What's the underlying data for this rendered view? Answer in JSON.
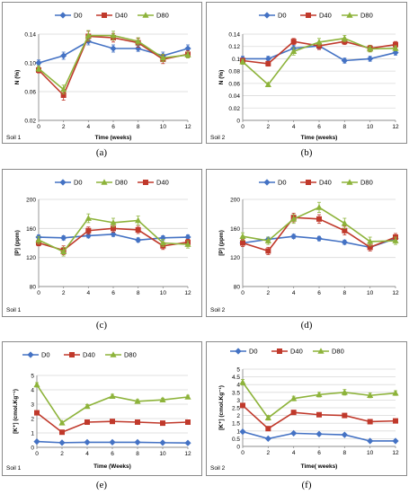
{
  "colors": {
    "D0": "#4472C4",
    "D40": "#C0392B",
    "D80": "#8DB33A",
    "grid": "#d9d9d9",
    "axis": "#8c8c8c"
  },
  "panels": {
    "a": {
      "caption": "(a)",
      "soil": "Soil 1"
    },
    "b": {
      "caption": "(b)",
      "soil": "Soil 2"
    },
    "c": {
      "caption": "(c)",
      "soil": "Soil 1"
    },
    "d": {
      "caption": "(d)",
      "soil": "Soil 2"
    },
    "e": {
      "caption": "(e)",
      "soil": "Soil 1"
    },
    "f": {
      "caption": "(f)",
      "soil": "Soil 2"
    }
  },
  "chart_data": [
    {
      "id": "a",
      "type": "line",
      "ylabel": "N (%)",
      "xlabel": "Time (weeks)",
      "x": [
        0,
        2,
        4,
        6,
        8,
        10,
        12
      ],
      "xlim": [
        0,
        12
      ],
      "xticks": [
        "0",
        "2",
        "4",
        "6",
        "8",
        "10",
        "12"
      ],
      "ylim": [
        0.02,
        0.14
      ],
      "yticks": [
        "0.02",
        "0.06",
        "0.10",
        "0.14"
      ],
      "legend_order": [
        "D0",
        "D40",
        "D80"
      ],
      "legend_position": "top",
      "series": [
        {
          "name": "D0",
          "marker": "diamond",
          "values": [
            0.1,
            0.11,
            0.13,
            0.12,
            0.12,
            0.11,
            0.12
          ],
          "errors": [
            0.004,
            0.005,
            0.005,
            0.005,
            0.004,
            0.005,
            0.005
          ]
        },
        {
          "name": "D40",
          "marker": "square",
          "values": [
            0.09,
            0.055,
            0.137,
            0.135,
            0.128,
            0.105,
            0.112
          ],
          "errors": [
            0.004,
            0.007,
            0.007,
            0.006,
            0.006,
            0.006,
            0.005
          ]
        },
        {
          "name": "D80",
          "marker": "triangle",
          "values": [
            0.092,
            0.063,
            0.138,
            0.138,
            0.13,
            0.107,
            0.111
          ],
          "errors": [
            0.004,
            0.006,
            0.007,
            0.006,
            0.005,
            0.005,
            0.004
          ]
        }
      ]
    },
    {
      "id": "b",
      "type": "line",
      "ylabel": "N (%)",
      "xlabel": "Time (weeks)",
      "x": [
        0,
        2,
        4,
        6,
        8,
        10,
        12
      ],
      "xlim": [
        0,
        12
      ],
      "xticks": [
        "0",
        "2",
        "4",
        "6",
        "8",
        "10",
        "12"
      ],
      "ylim": [
        0,
        0.14
      ],
      "yticks": [
        "0",
        "0.02",
        "0.04",
        "0.06",
        "0.08",
        "0.1",
        "0.12",
        "0.14"
      ],
      "legend_order": [
        "D0",
        "D40",
        "D80"
      ],
      "legend_position": "top",
      "series": [
        {
          "name": "D0",
          "marker": "diamond",
          "values": [
            0.1,
            0.1,
            0.117,
            0.121,
            0.097,
            0.1,
            0.11
          ],
          "errors": [
            0.004,
            0.004,
            0.005,
            0.005,
            0.004,
            0.004,
            0.004
          ]
        },
        {
          "name": "D40",
          "marker": "square",
          "values": [
            0.097,
            0.092,
            0.128,
            0.121,
            0.128,
            0.117,
            0.123
          ],
          "errors": [
            0.004,
            0.004,
            0.005,
            0.006,
            0.005,
            0.005,
            0.005
          ]
        },
        {
          "name": "D80",
          "marker": "triangle",
          "values": [
            0.095,
            0.058,
            0.112,
            0.127,
            0.133,
            0.116,
            0.117
          ],
          "errors": [
            0.004,
            0.003,
            0.006,
            0.006,
            0.005,
            0.005,
            0.004
          ]
        }
      ]
    },
    {
      "id": "c",
      "type": "line",
      "ylabel": "[P] (ppm)",
      "xlabel": "",
      "x": [
        0,
        2,
        4,
        6,
        8,
        10,
        12
      ],
      "xlim": [
        0,
        12
      ],
      "xticks": [
        "0",
        "2",
        "4",
        "6",
        "8",
        "10",
        "12"
      ],
      "ylim": [
        80,
        200
      ],
      "yticks": [
        "80",
        "120",
        "160",
        "200"
      ],
      "legend_order": [
        "D0",
        "D80",
        "D40"
      ],
      "legend_position": "top",
      "series": [
        {
          "name": "D0",
          "marker": "diamond",
          "values": [
            148,
            147,
            150,
            152,
            144,
            147,
            148
          ],
          "errors": [
            3,
            3,
            3,
            3,
            3,
            3,
            3
          ]
        },
        {
          "name": "D40",
          "marker": "square",
          "values": [
            140,
            130,
            157,
            160,
            158,
            136,
            141
          ],
          "errors": [
            4,
            6,
            5,
            5,
            5,
            5,
            4
          ]
        },
        {
          "name": "D80",
          "marker": "triangle",
          "values": [
            144,
            128,
            174,
            168,
            171,
            140,
            138
          ],
          "errors": [
            5,
            6,
            6,
            6,
            6,
            5,
            5
          ]
        }
      ]
    },
    {
      "id": "d",
      "type": "line",
      "ylabel": "[P] (ppm)",
      "xlabel": "",
      "x": [
        0,
        2,
        4,
        6,
        8,
        10,
        12
      ],
      "xlim": [
        0,
        12
      ],
      "xticks": [
        "0",
        "2",
        "4",
        "6",
        "8",
        "10",
        "12"
      ],
      "ylim": [
        80,
        200
      ],
      "yticks": [
        "80",
        "120",
        "160",
        "200"
      ],
      "legend_order": [
        "D0",
        "D40",
        "D80"
      ],
      "legend_position": "top",
      "series": [
        {
          "name": "D0",
          "marker": "diamond",
          "values": [
            140,
            145,
            149,
            146,
            141,
            134,
            146
          ],
          "errors": [
            3,
            3,
            3,
            3,
            3,
            3,
            3
          ]
        },
        {
          "name": "D40",
          "marker": "square",
          "values": [
            140,
            129,
            175,
            173,
            157,
            134,
            148
          ],
          "errors": [
            5,
            5,
            6,
            6,
            6,
            5,
            5
          ]
        },
        {
          "name": "D80",
          "marker": "triangle",
          "values": [
            149,
            143,
            173,
            189,
            167,
            142,
            143
          ],
          "errors": [
            5,
            5,
            6,
            7,
            7,
            6,
            5
          ]
        }
      ]
    },
    {
      "id": "e",
      "type": "line",
      "ylabel": "[K⁺] (cmol.Kg⁻¹)",
      "xlabel": "Time (Weeks)",
      "x": [
        0,
        2,
        4,
        6,
        8,
        10,
        12
      ],
      "xlim": [
        0,
        12
      ],
      "xticks": [
        "0",
        "2",
        "4",
        "6",
        "8",
        "10",
        "12"
      ],
      "ylim": [
        0,
        5
      ],
      "yticks": [
        "0",
        "1",
        "2",
        "3",
        "4",
        "5"
      ],
      "legend_order": [
        "D0",
        "D40",
        "D80"
      ],
      "legend_position": "top",
      "series": [
        {
          "name": "D0",
          "marker": "diamond",
          "values": [
            0.4,
            0.32,
            0.35,
            0.35,
            0.35,
            0.32,
            0.3
          ],
          "errors": [
            0.03,
            0.03,
            0.03,
            0.03,
            0.03,
            0.03,
            0.03
          ]
        },
        {
          "name": "D40",
          "marker": "square",
          "values": [
            2.4,
            1.05,
            1.75,
            1.8,
            1.75,
            1.68,
            1.75
          ],
          "errors": [
            0.08,
            0.06,
            0.07,
            0.07,
            0.07,
            0.07,
            0.07
          ]
        },
        {
          "name": "D80",
          "marker": "triangle",
          "values": [
            4.35,
            1.7,
            2.85,
            3.55,
            3.2,
            3.3,
            3.5
          ],
          "errors": [
            0.15,
            0.1,
            0.12,
            0.14,
            0.12,
            0.12,
            0.12
          ]
        }
      ]
    },
    {
      "id": "f",
      "type": "line",
      "ylabel": "[K⁺] (cmol.Kg⁻¹)",
      "xlabel": "Time( weeks)",
      "x": [
        0,
        2,
        4,
        6,
        8,
        10,
        12
      ],
      "xlim": [
        0,
        12
      ],
      "xticks": [
        "0",
        "2",
        "4",
        "6",
        "8",
        "10",
        "12"
      ],
      "ylim": [
        0,
        5
      ],
      "yticks": [
        "0",
        "0.5",
        "1",
        "1.5",
        "2",
        "2.5",
        "3",
        "3.5",
        "4",
        "4.5",
        "5"
      ],
      "legend_order": [
        "D0",
        "D40",
        "D80"
      ],
      "legend_position": "top",
      "series": [
        {
          "name": "D0",
          "marker": "diamond",
          "values": [
            0.95,
            0.5,
            0.85,
            0.8,
            0.75,
            0.35,
            0.35
          ],
          "errors": [
            0.05,
            0.05,
            0.05,
            0.05,
            0.05,
            0.05,
            0.05
          ]
        },
        {
          "name": "D40",
          "marker": "square",
          "values": [
            2.65,
            1.15,
            2.2,
            2.05,
            2.0,
            1.6,
            1.65
          ],
          "errors": [
            0.12,
            0.1,
            0.1,
            0.1,
            0.1,
            0.1,
            0.1
          ]
        },
        {
          "name": "D80",
          "marker": "triangle",
          "values": [
            4.15,
            1.85,
            3.1,
            3.35,
            3.5,
            3.3,
            3.45
          ],
          "errors": [
            0.18,
            0.15,
            0.15,
            0.15,
            0.18,
            0.15,
            0.15
          ]
        }
      ]
    }
  ]
}
